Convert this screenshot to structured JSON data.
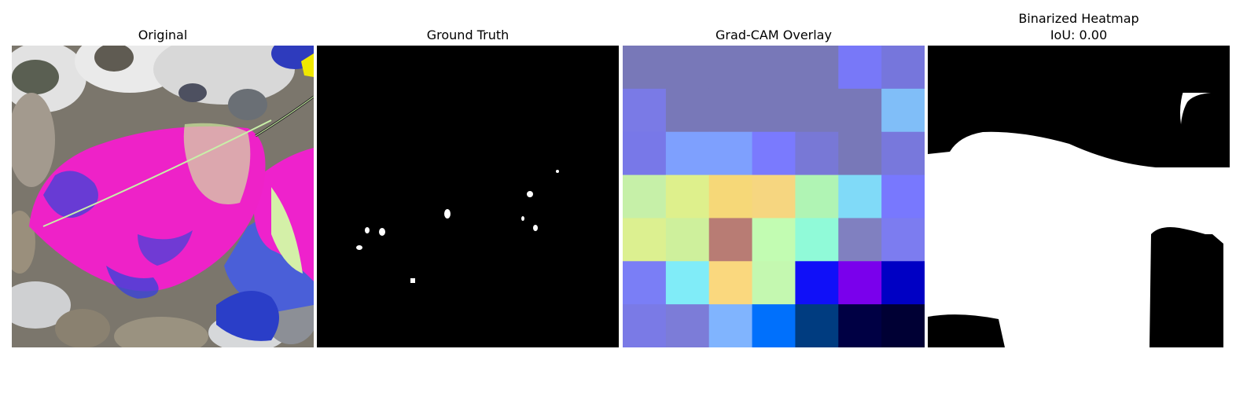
{
  "panels": [
    {
      "id": "original",
      "title": "Original"
    },
    {
      "id": "ground_truth",
      "title": "Ground Truth"
    },
    {
      "id": "gradcam",
      "title": "Grad-CAM Overlay"
    },
    {
      "id": "binarized",
      "title_line1": "Binarized Heatmap",
      "title_line2": "IoU: 0.00"
    }
  ],
  "gradcam_grid": [
    [
      "#7878b8",
      "#7878b8",
      "#7878b8",
      "#7878b8",
      "#7878b8",
      "#7878f8",
      "#7676dc"
    ],
    [
      "#7a7ae6",
      "#7878b8",
      "#7878b8",
      "#7878b8",
      "#7878b8",
      "#7878b8",
      "#80bef8"
    ],
    [
      "#7878e8",
      "#7ea0fe",
      "#7ea0fe",
      "#7a7afe",
      "#7878d6",
      "#7878b8",
      "#7878dc"
    ],
    [
      "#c6f0a8",
      "#def08c",
      "#f6d878",
      "#f6d680",
      "#b0f4b4",
      "#80daf8",
      "#7878fe"
    ],
    [
      "#dcf090",
      "#cef09c",
      "#b87c74",
      "#c2fcb2",
      "#90fad8",
      "#8080c0",
      "#7c7cf0"
    ],
    [
      "#7a7ef6",
      "#80ecf8",
      "#fad87e",
      "#c4f8b0",
      "#1010f8",
      "#7a00ec",
      "#0000c4"
    ],
    [
      "#7a7ae6",
      "#7c7cd8",
      "#80b4fe",
      "#0070fc",
      "#003c80",
      "#000044",
      "#000034"
    ]
  ]
}
